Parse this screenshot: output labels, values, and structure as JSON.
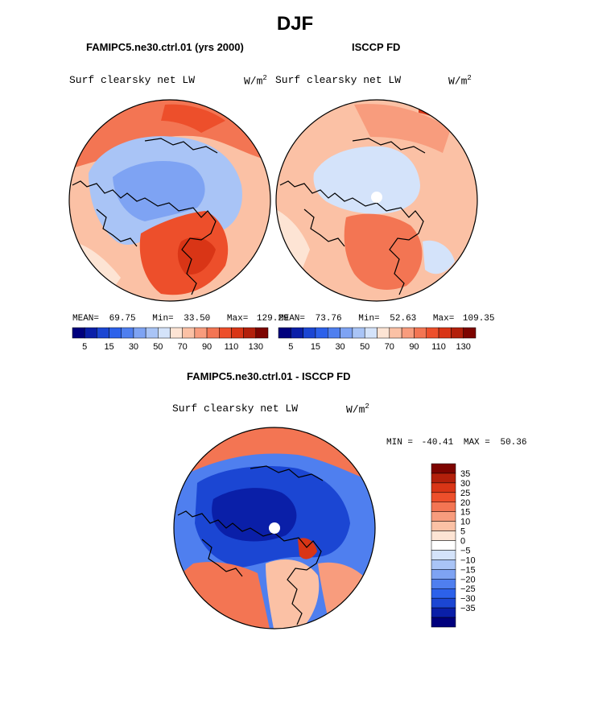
{
  "page_title": "DJF",
  "panels": [
    {
      "title": "FAMIPC5.ne30.ctrl.01 (yrs 2000)",
      "field": "Surf clearsky net LW",
      "units": "W/m",
      "units_sup": "2",
      "stats": {
        "mean_label": "MEAN=",
        "mean": "69.75",
        "min_label": "Min=",
        "min": "33.50",
        "max_label": "Max=",
        "max": "129.29"
      }
    },
    {
      "title": "ISCCP FD",
      "field": "Surf clearsky net LW",
      "units": "W/m",
      "units_sup": "2",
      "stats": {
        "mean_label": "MEAN=",
        "mean": "73.76",
        "min_label": "Min=",
        "min": "52.63",
        "max_label": "Max=",
        "max": "109.35"
      }
    },
    {
      "title": "FAMIPC5.ne30.ctrl.01 - ISCCP FD",
      "field": "Surf clearsky net LW",
      "units": "W/m",
      "units_sup": "2",
      "stats": {
        "min_label": "MIN =",
        "min": "-40.41",
        "max_label": "MAX =",
        "max": "50.36"
      }
    }
  ],
  "chart_data": [
    {
      "type": "heatmap",
      "projection": "north polar stereographic",
      "title": "FAMIPC5.ne30.ctrl.01 (yrs 2000)",
      "variable": "Surf clearsky net LW",
      "units": "W/m2",
      "mean": 69.75,
      "min": 33.5,
      "max": 129.29,
      "colorbar": {
        "levels": [
          5,
          10,
          15,
          20,
          30,
          40,
          50,
          60,
          70,
          80,
          90,
          100,
          110,
          120,
          130
        ],
        "tick_labels": [
          "5",
          "15",
          "30",
          "50",
          "70",
          "90",
          "110",
          "130"
        ],
        "colors": [
          "#00007d",
          "#0a1fa8",
          "#1b46d3",
          "#2c61ea",
          "#4f7fef",
          "#7ea3f3",
          "#a9c4f6",
          "#d4e3fa",
          "#fde4d4",
          "#fbc1a5",
          "#f89c7d",
          "#f37553",
          "#ed4f2b",
          "#d93516",
          "#b3200b",
          "#7d0400"
        ]
      }
    },
    {
      "type": "heatmap",
      "projection": "north polar stereographic",
      "title": "ISCCP FD",
      "variable": "Surf clearsky net LW",
      "units": "W/m2",
      "mean": 73.76,
      "min": 52.63,
      "max": 109.35,
      "colorbar": {
        "levels": [
          5,
          10,
          15,
          20,
          30,
          40,
          50,
          60,
          70,
          80,
          90,
          100,
          110,
          120,
          130
        ],
        "tick_labels": [
          "5",
          "15",
          "30",
          "50",
          "70",
          "90",
          "110",
          "130"
        ],
        "colors": [
          "#00007d",
          "#0a1fa8",
          "#1b46d3",
          "#2c61ea",
          "#4f7fef",
          "#7ea3f3",
          "#a9c4f6",
          "#d4e3fa",
          "#fde4d4",
          "#fbc1a5",
          "#f89c7d",
          "#f37553",
          "#ed4f2b",
          "#d93516",
          "#b3200b",
          "#7d0400"
        ]
      }
    },
    {
      "type": "heatmap",
      "projection": "north polar stereographic",
      "title": "FAMIPC5.ne30.ctrl.01 - ISCCP FD",
      "variable": "Surf clearsky net LW",
      "units": "W/m2",
      "min": -40.41,
      "max": 50.36,
      "colorbar": {
        "tick_labels": [
          "35",
          "30",
          "25",
          "20",
          "15",
          "10",
          "5",
          "0",
          "−5",
          "−10",
          "−15",
          "−20",
          "−25",
          "−30",
          "−35"
        ],
        "colors": [
          "#7d0400",
          "#b3200b",
          "#d93516",
          "#ed4f2b",
          "#f37553",
          "#f89c7d",
          "#fbc1a5",
          "#fde4d4",
          "#ffffff",
          "#d4e3fa",
          "#a9c4f6",
          "#7ea3f3",
          "#4f7fef",
          "#2c61ea",
          "#1b46d3",
          "#0a1fa8",
          "#00007d"
        ]
      }
    }
  ]
}
